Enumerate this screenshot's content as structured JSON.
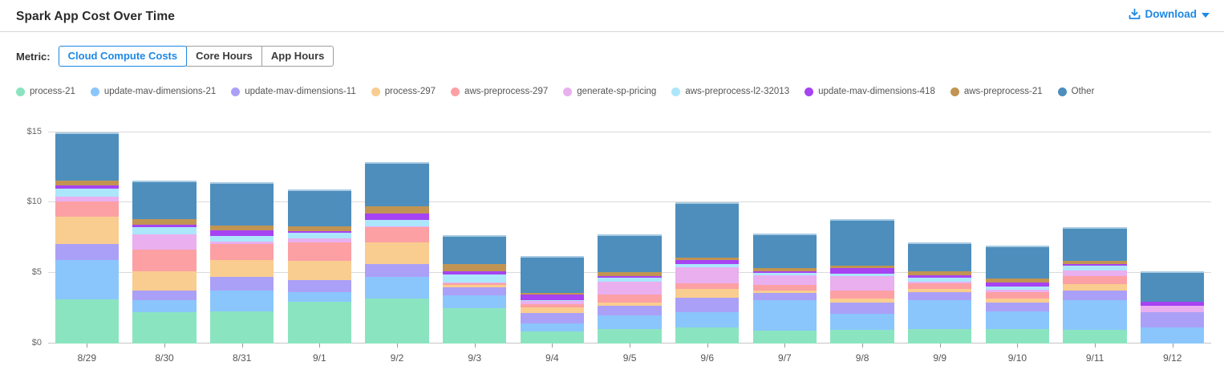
{
  "header": {
    "title": "Spark App Cost Over Time",
    "download_label": "Download"
  },
  "metric": {
    "label": "Metric:",
    "options": [
      {
        "label": "Cloud Compute Costs",
        "selected": true
      },
      {
        "label": "Core Hours",
        "selected": false
      },
      {
        "label": "App Hours",
        "selected": false
      }
    ]
  },
  "colors": {
    "accent_blue": "#1E88E5",
    "gridline": "#DADADA",
    "axis_text": "#666666"
  },
  "chart_data": {
    "type": "bar",
    "stacked": true,
    "title": "Spark App Cost Over Time",
    "xlabel": "",
    "ylabel": "",
    "ylim": [
      0,
      16
    ],
    "yticks": [
      0,
      5,
      10,
      15
    ],
    "ytick_labels": [
      "$0",
      "$5",
      "$10",
      "$15"
    ],
    "grid": true,
    "legend_position": "top",
    "categories": [
      "8/29",
      "8/30",
      "8/31",
      "9/1",
      "9/2",
      "9/3",
      "9/4",
      "9/5",
      "9/6",
      "9/7",
      "9/8",
      "9/9",
      "9/10",
      "9/11",
      "9/12"
    ],
    "series": [
      {
        "name": "process-21",
        "color": "#8BE4C0",
        "values": [
          3.15,
          2.2,
          2.3,
          2.95,
          3.2,
          2.5,
          0.85,
          1.05,
          1.15,
          0.9,
          0.95,
          1.05,
          1.05,
          0.95,
          0.0
        ]
      },
      {
        "name": "update-mav-dimensions-21",
        "color": "#8AC6FB",
        "values": [
          2.8,
          0.9,
          1.45,
          0.7,
          1.55,
          0.9,
          0.6,
          0.95,
          1.05,
          2.15,
          1.15,
          2.05,
          1.25,
          2.15,
          1.15
        ]
      },
      {
        "name": "update-mav-dimensions-11",
        "color": "#ABA0F7",
        "values": [
          1.1,
          0.65,
          0.95,
          0.85,
          0.9,
          0.6,
          0.7,
          0.65,
          1.05,
          0.55,
          0.8,
          0.55,
          0.6,
          0.65,
          1.05
        ]
      },
      {
        "name": "process-297",
        "color": "#F9CD8F",
        "values": [
          1.95,
          1.4,
          1.2,
          1.35,
          1.55,
          0.15,
          0.4,
          0.25,
          0.6,
          0.15,
          0.3,
          0.25,
          0.3,
          0.45,
          0.0
        ]
      },
      {
        "name": "aws-preprocess-297",
        "color": "#FCA0A4",
        "values": [
          1.1,
          1.5,
          1.15,
          1.3,
          1.05,
          0.15,
          0.25,
          0.6,
          0.4,
          0.4,
          0.55,
          0.4,
          0.45,
          0.6,
          0.0
        ]
      },
      {
        "name": "generate-sp-pricing",
        "color": "#E9AFEF",
        "values": [
          0.35,
          1.1,
          0.2,
          0.3,
          0.05,
          0.05,
          0.2,
          0.9,
          1.15,
          0.7,
          1.05,
          0.1,
          0.15,
          0.4,
          0.45
        ]
      },
      {
        "name": "aws-preprocess-l2-32013",
        "color": "#ACE6FB",
        "values": [
          0.55,
          0.5,
          0.4,
          0.4,
          0.45,
          0.55,
          0.05,
          0.25,
          0.25,
          0.15,
          0.15,
          0.25,
          0.25,
          0.3,
          0.0
        ]
      },
      {
        "name": "update-mav-dimensions-418",
        "color": "#A643F2",
        "values": [
          0.2,
          0.2,
          0.4,
          0.15,
          0.45,
          0.25,
          0.4,
          0.15,
          0.25,
          0.15,
          0.4,
          0.2,
          0.3,
          0.15,
          0.3
        ]
      },
      {
        "name": "aws-preprocess-21",
        "color": "#C19453",
        "values": [
          0.35,
          0.4,
          0.3,
          0.3,
          0.55,
          0.5,
          0.15,
          0.25,
          0.2,
          0.2,
          0.2,
          0.25,
          0.25,
          0.2,
          0.0
        ]
      },
      {
        "name": "Other",
        "color": "#4D8EBD",
        "values": [
          3.45,
          2.7,
          3.1,
          2.65,
          3.1,
          2.05,
          2.6,
          2.7,
          3.9,
          2.45,
          3.3,
          2.05,
          2.35,
          2.4,
          2.15
        ]
      }
    ]
  }
}
